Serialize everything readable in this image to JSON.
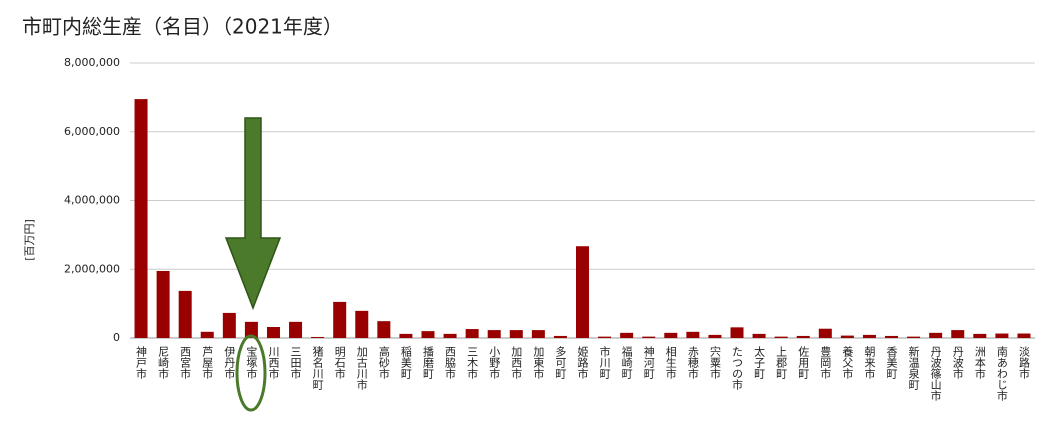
{
  "chart_data": {
    "type": "bar",
    "title": "市町内総生産（名目）（2021年度）",
    "y_label": "[百万円]",
    "categories": [
      "神戸市",
      "尼崎市",
      "西宮市",
      "芦屋市",
      "伊丹市",
      "宝塚市",
      "川西市",
      "三田市",
      "猪名川町",
      "明石市",
      "加古川市",
      "高砂市",
      "稲美町",
      "播磨町",
      "西脇市",
      "三木市",
      "小野市",
      "加西市",
      "加東市",
      "多可町",
      "姫路市",
      "市川町",
      "福崎町",
      "神河町",
      "相生市",
      "赤穂市",
      "宍粟市",
      "たつの市",
      "太子町",
      "上郡町",
      "佐用町",
      "豊岡市",
      "養父市",
      "朝来市",
      "香美町",
      "新温泉町",
      "丹波篠山市",
      "丹波市",
      "洲本市",
      "南あわじ市",
      "淡路市"
    ],
    "values": [
      6950000,
      1950000,
      1370000,
      180000,
      730000,
      470000,
      320000,
      470000,
      30000,
      1050000,
      790000,
      490000,
      120000,
      200000,
      120000,
      260000,
      230000,
      230000,
      230000,
      60000,
      2670000,
      40000,
      150000,
      40000,
      150000,
      180000,
      90000,
      310000,
      120000,
      40000,
      60000,
      270000,
      70000,
      90000,
      60000,
      40000,
      150000,
      230000,
      120000,
      130000,
      130000
    ],
    "color": "#990000",
    "ylim": [
      0,
      8000000
    ],
    "yticks": [
      {
        "value": 0,
        "label": "0"
      },
      {
        "value": 2000000,
        "label": "2,000,000"
      },
      {
        "value": 4000000,
        "label": "4,000,000"
      },
      {
        "value": 6000000,
        "label": "6,000,000"
      },
      {
        "value": 8000000,
        "label": "8,000,000"
      }
    ],
    "grid": true
  }
}
